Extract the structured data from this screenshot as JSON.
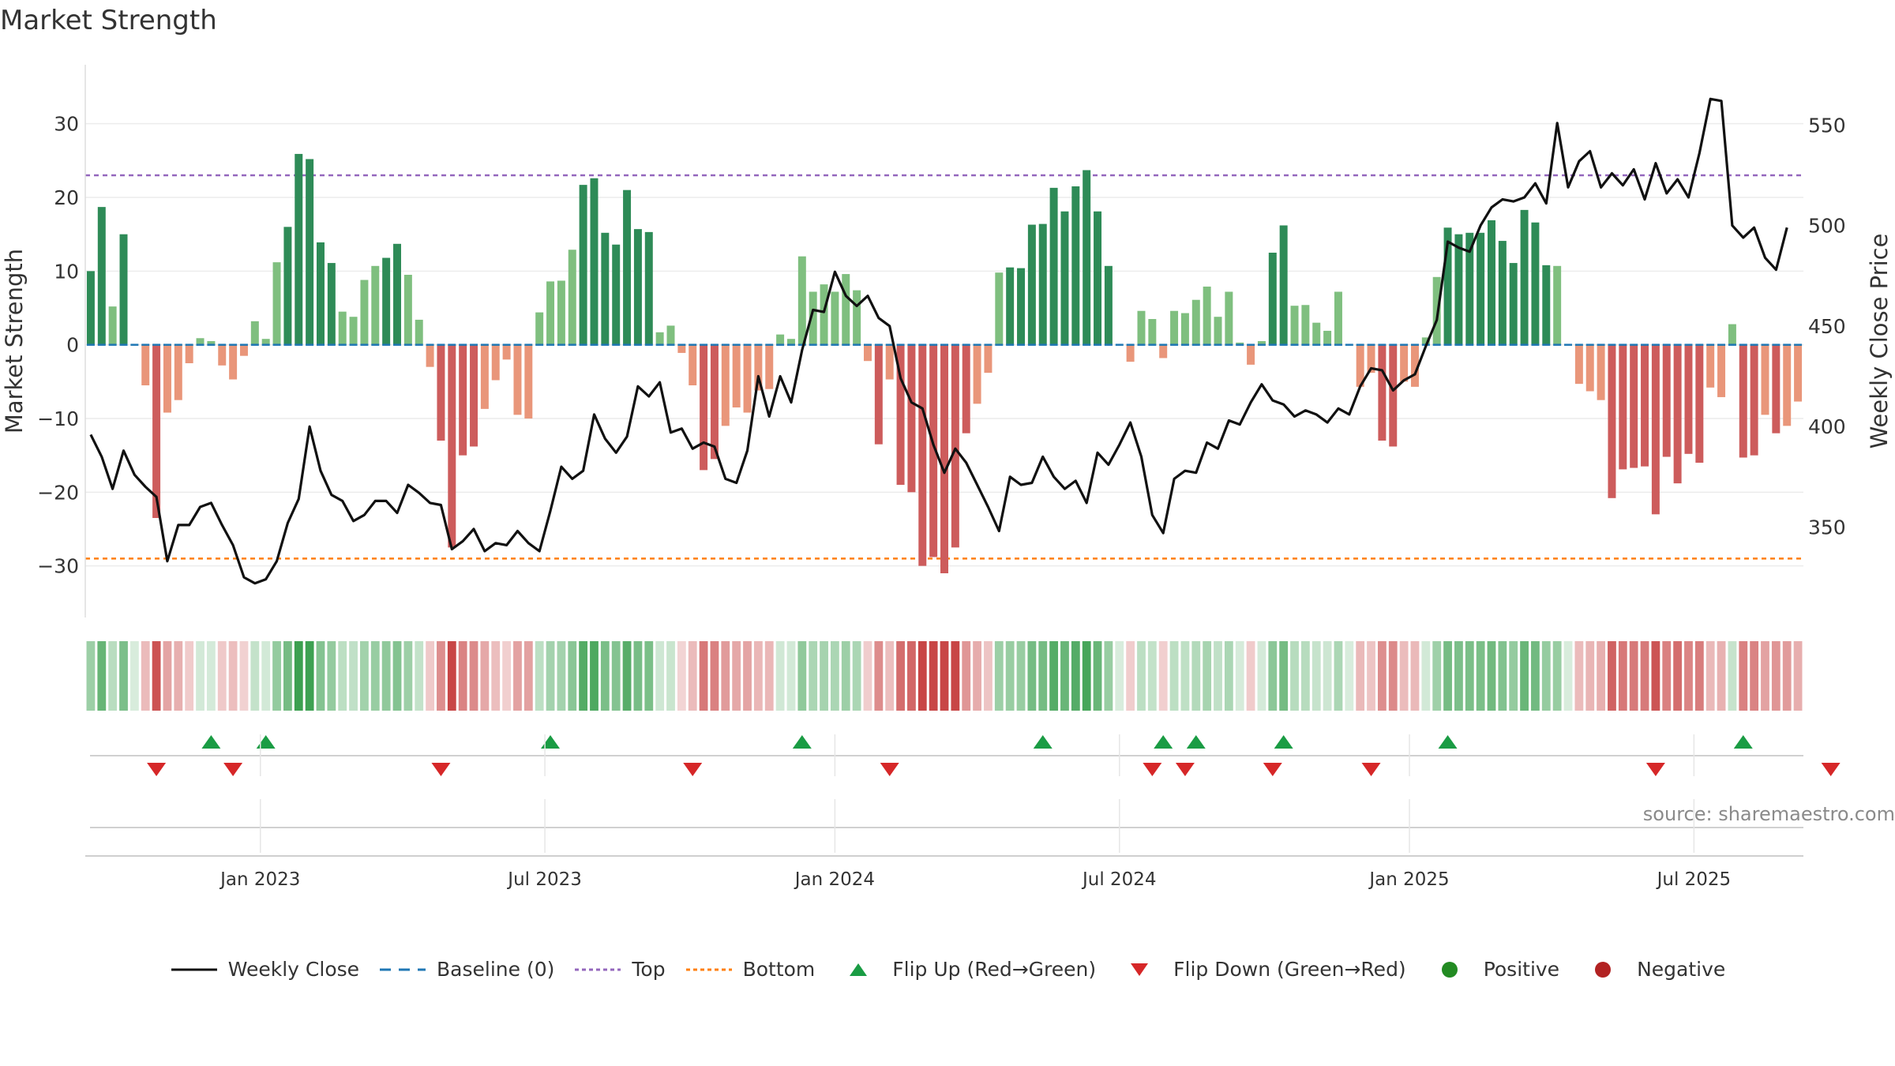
{
  "title": "Market Strength",
  "source": "source: sharemaestro.com",
  "colors": {
    "strong_green": "#2e8b57",
    "light_green": "#7fbf7f",
    "strong_red": "#cd5c5c",
    "light_red": "#e9967a",
    "close_line": "#111111",
    "baseline": "#1f77b4",
    "top": "#9467bd",
    "bottom": "#ff7f0e",
    "flip_up": "#1a9c44",
    "flip_down": "#d62728"
  },
  "legend": [
    {
      "label": "Weekly Close",
      "marker": "line-solid",
      "color": "#111111"
    },
    {
      "label": "Baseline (0)",
      "marker": "line-dash",
      "color": "#1f77b4"
    },
    {
      "label": "Top",
      "marker": "line-dot",
      "color": "#9467bd"
    },
    {
      "label": "Bottom",
      "marker": "line-dot",
      "color": "#ff7f0e"
    },
    {
      "label": "Flip Up (Red→Green)",
      "marker": "triangle-up",
      "color": "#1a9c44"
    },
    {
      "label": "Flip Down (Green→Red)",
      "marker": "triangle-down",
      "color": "#d62728"
    },
    {
      "label": "Positive",
      "marker": "circle",
      "color": "#228b22"
    },
    {
      "label": "Negative",
      "marker": "circle",
      "color": "#b22222"
    }
  ],
  "chart_data": {
    "type": "bar",
    "title": "Market Strength",
    "ylabel": "Market Strength",
    "y2label": "Weekly Close Price",
    "ylim": [
      -37,
      38
    ],
    "y2lim": [
      305,
      580
    ],
    "yticks": [
      30,
      20,
      10,
      0,
      -10,
      -20,
      -30
    ],
    "ytick_labels": [
      "30",
      "20",
      "10",
      "0",
      "−10",
      "−20",
      "−30"
    ],
    "y2ticks": [
      550,
      500,
      450,
      400,
      350
    ],
    "y2tick_labels": [
      "550",
      "500",
      "450",
      "400",
      "350"
    ],
    "x_range": [
      "2022-09-26",
      "2025-09-29"
    ],
    "xticks": [
      "Jan 2023",
      "Jul 2023",
      "Jan 2024",
      "Jul 2024",
      "Jan 2025",
      "Jul 2025"
    ],
    "xtick_weeks": [
      16.0,
      42.0,
      68.5,
      94.5,
      121.0,
      147.0
    ],
    "top_line": 23,
    "bottom_line": -29,
    "baseline": 0,
    "strength": [
      10,
      18.7,
      5.2,
      15,
      0,
      -5.5,
      -23.5,
      -9.2,
      -7.5,
      -2.5,
      0.9,
      0.5,
      -2.8,
      -4.7,
      -1.5,
      3.2,
      0.8,
      11.2,
      16,
      25.9,
      25.2,
      13.9,
      11.1,
      4.5,
      3.8,
      8.8,
      10.7,
      11.8,
      13.7,
      9.5,
      3.4,
      -3,
      -13,
      -27.5,
      -15,
      -13.8,
      -8.7,
      -4.8,
      -2,
      -9.5,
      -10,
      4.4,
      8.6,
      8.7,
      12.9,
      21.7,
      22.6,
      15.2,
      13.6,
      21,
      15.7,
      15.3,
      1.7,
      2.6,
      -1.1,
      -5.5,
      -17,
      -15.5,
      -11,
      -8.5,
      -9.2,
      -6.2,
      -6,
      1.4,
      0.8,
      12,
      7.2,
      8.2,
      7.2,
      9.6,
      7.4,
      -2.2,
      -13.5,
      -4.7,
      -19,
      -20,
      -30,
      -28.8,
      -31,
      -27.5,
      -12,
      -8,
      -3.8,
      9.8,
      10.5,
      10.4,
      16.3,
      16.4,
      21.3,
      18.1,
      21.5,
      23.7,
      18.1,
      10.7,
      0,
      -2.3,
      4.6,
      3.5,
      -1.8,
      4.6,
      4.3,
      6.1,
      7.9,
      3.8,
      7.2,
      0.3,
      -2.7,
      0.5,
      12.5,
      16.2,
      5.3,
      5.4,
      3,
      1.9,
      7.2,
      0,
      -5.7,
      -3.8,
      -13,
      -13.8,
      -5,
      -5.7,
      1,
      9.2,
      15.9,
      15,
      15.2,
      15.2,
      16.9,
      14.1,
      11.1,
      18.3,
      16.6,
      10.8,
      10.7,
      0,
      -5.3,
      -6.3,
      -7.5,
      -20.8,
      -16.9,
      -16.7,
      -16.5,
      -23,
      -15.2,
      -18.8,
      -14.8,
      -16,
      -5.8,
      -7.1,
      2.8,
      -15.3,
      -15,
      -9.5,
      -12,
      -11,
      -7.7
    ],
    "close": [
      396,
      385,
      369,
      388,
      376,
      370,
      365,
      333,
      351,
      351,
      360,
      362,
      351,
      341,
      325,
      322,
      324,
      333,
      352,
      364,
      400,
      378,
      366,
      363,
      353,
      356,
      363,
      363,
      357,
      371,
      367,
      362,
      361,
      339,
      343,
      349,
      338,
      342,
      341,
      348,
      342,
      338,
      358,
      380,
      374,
      378,
      406,
      394,
      387,
      395,
      420,
      415,
      422,
      397,
      399,
      389,
      392,
      390,
      374,
      372,
      388,
      425,
      405,
      425,
      412,
      438,
      458,
      457,
      477,
      465,
      460,
      465,
      454,
      450,
      424,
      412,
      409,
      391,
      377,
      389,
      382,
      371,
      360,
      348,
      375,
      371,
      372,
      385,
      375,
      369,
      373,
      362,
      387,
      381,
      391,
      402,
      385,
      356,
      347,
      374,
      378,
      377,
      392,
      389,
      403,
      401,
      412,
      421,
      413,
      411,
      405,
      408,
      406,
      402,
      409,
      406,
      420,
      429,
      428,
      418,
      423,
      426,
      440,
      453,
      492,
      489,
      487,
      500,
      509,
      513,
      512,
      514,
      521,
      511,
      551,
      519,
      532,
      537,
      519,
      526,
      520,
      528,
      513,
      531,
      516,
      523,
      514,
      536,
      563,
      562,
      500,
      494,
      499,
      484,
      478,
      499
    ],
    "flip_up": [
      11,
      16,
      42,
      65,
      87,
      98,
      101,
      109,
      124,
      151
    ],
    "flip_down": [
      6,
      13,
      32,
      55,
      73,
      97,
      100,
      108,
      117,
      143,
      159
    ]
  }
}
